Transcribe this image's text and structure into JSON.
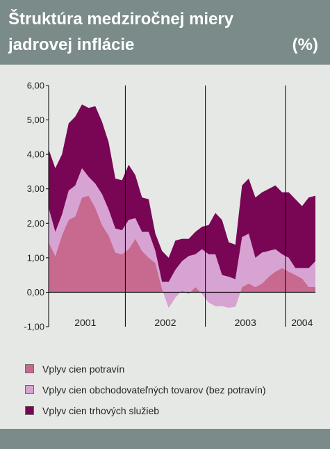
{
  "header": {
    "title_line1": "Štruktúra medziročnej miery",
    "title_line2": "jadrovej inflácie",
    "unit": "(%)"
  },
  "chart_data": {
    "type": "area",
    "stacking": "stacked",
    "ylim": [
      -1,
      6
    ],
    "yticks": [
      "6,00",
      "5,00",
      "4,00",
      "3,00",
      "2,00",
      "1,00",
      "0,00",
      "-1,00"
    ],
    "xlabels": [
      "2001",
      "2002",
      "2003",
      "2004"
    ],
    "x_range_months": [
      "2001-01",
      "2004-09"
    ],
    "series": [
      {
        "name": "Vplyv cien potravín",
        "color": "#c8698f",
        "values": [
          1.45,
          1.05,
          1.65,
          2.1,
          2.2,
          2.75,
          2.8,
          2.45,
          1.95,
          1.65,
          1.15,
          1.1,
          1.25,
          1.55,
          1.2,
          1.0,
          0.85,
          0.1,
          -0.45,
          -0.15,
          0.05,
          -0.05,
          0.15,
          -0.05,
          -0.3,
          -0.4,
          -0.4,
          -0.45,
          -0.42,
          0.15,
          0.25,
          0.15,
          0.25,
          0.45,
          0.6,
          0.7,
          0.6,
          0.5,
          0.4,
          0.15,
          0.15
        ]
      },
      {
        "name": "Vplyv cien obchodovateľných tovarov (bez potravín)",
        "color": "#d7a3d3",
        "values": [
          1.0,
          0.7,
          0.6,
          0.85,
          0.9,
          0.85,
          0.55,
          0.7,
          0.9,
          0.75,
          0.7,
          0.7,
          0.85,
          0.6,
          0.55,
          0.75,
          0.35,
          0.2,
          0.75,
          0.8,
          0.85,
          1.1,
          0.95,
          1.3,
          1.4,
          1.5,
          0.9,
          0.9,
          0.8,
          1.45,
          1.45,
          0.85,
          0.9,
          0.75,
          0.65,
          0.4,
          0.4,
          0.2,
          0.3,
          0.55,
          0.75
        ]
      },
      {
        "name": "Vplyv cien trhových služieb",
        "color": "#780655",
        "values": [
          1.7,
          1.85,
          1.75,
          1.95,
          2.0,
          1.85,
          2.0,
          2.25,
          2.1,
          1.95,
          1.45,
          1.45,
          1.6,
          1.25,
          1.0,
          0.95,
          0.5,
          0.9,
          0.7,
          0.85,
          0.65,
          0.5,
          0.65,
          0.65,
          0.85,
          1.2,
          1.6,
          1.0,
          1.0,
          1.5,
          1.6,
          1.75,
          1.75,
          1.8,
          1.85,
          1.8,
          1.9,
          2.0,
          1.8,
          2.05,
          1.9
        ]
      }
    ]
  },
  "colors": {
    "header_bg": "#7a8b89",
    "panel_bg": "#e6e8e6"
  }
}
